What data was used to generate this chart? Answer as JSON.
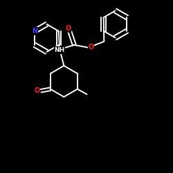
{
  "background_color": "#000000",
  "bond_color": "#ffffff",
  "atom_colors": {
    "N": "#4040ff",
    "O": "#ff2020",
    "C": "#ffffff",
    "H": "#ffffff"
  },
  "bond_width": 1.4,
  "figsize": [
    2.5,
    2.5
  ],
  "dpi": 100
}
